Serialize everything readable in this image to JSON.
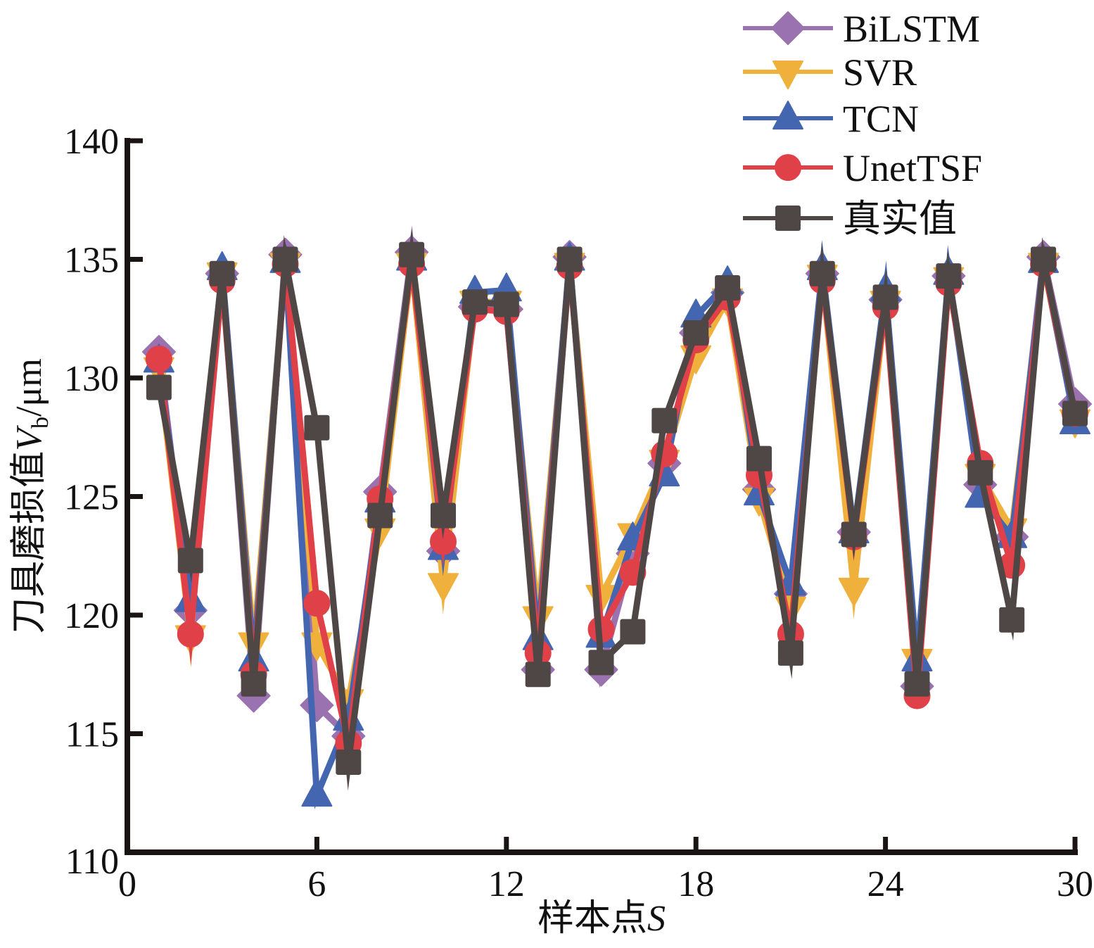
{
  "chart_data": {
    "type": "line",
    "title": "",
    "xlabel": "样本点",
    "xlabel_var": "S",
    "ylabel": "刀具磨损值",
    "ylabel_var": "V",
    "ylabel_sub": "b",
    "ylabel_unit": "/μm",
    "xlim": [
      0,
      30
    ],
    "ylim": [
      110,
      140
    ],
    "xticks": [
      0,
      6,
      12,
      18,
      24,
      30
    ],
    "xtick_labels": [
      "0",
      "6",
      "12",
      "18",
      "24",
      "30"
    ],
    "yticks": [
      110,
      115,
      120,
      125,
      130,
      135,
      140
    ],
    "ytick_labels": [
      "110",
      "115",
      "120",
      "125",
      "130",
      "135",
      "140"
    ],
    "grid": false,
    "legend_position": "top-right",
    "x": [
      1,
      2,
      3,
      4,
      5,
      6,
      7,
      8,
      9,
      10,
      11,
      12,
      13,
      14,
      15,
      16,
      17,
      18,
      19,
      20,
      21,
      22,
      23,
      24,
      25,
      26,
      27,
      28,
      29,
      30
    ],
    "series": [
      {
        "name": "BiLSTM",
        "color": "#9b72b0",
        "marker": "diamond",
        "values": [
          131.1,
          120.2,
          134.4,
          116.6,
          135.2,
          116.2,
          114.9,
          125.2,
          135.3,
          122.7,
          133.0,
          132.9,
          117.7,
          135.1,
          117.7,
          122.6,
          126.4,
          131.9,
          133.6,
          125.3,
          120.9,
          134.4,
          123.5,
          133.3,
          117.0,
          134.3,
          125.5,
          123.3,
          135.1,
          128.9
        ]
      },
      {
        "name": "SVR",
        "color": "#f0b03c",
        "marker": "triangle-down",
        "values": [
          130.4,
          119.1,
          134.4,
          118.8,
          134.8,
          118.8,
          116.4,
          123.6,
          134.8,
          121.3,
          133.2,
          133.2,
          119.9,
          134.8,
          120.8,
          123.4,
          126.5,
          130.9,
          133.3,
          124.9,
          120.3,
          134.3,
          121.1,
          133.2,
          118.1,
          134.2,
          125.9,
          123.6,
          134.8,
          128.2
        ]
      },
      {
        "name": "TCN",
        "color": "#4466b0",
        "marker": "triangle-up",
        "values": [
          130.7,
          120.6,
          134.6,
          118.1,
          134.9,
          112.4,
          115.6,
          124.8,
          135.0,
          122.8,
          133.6,
          133.7,
          119.0,
          135.0,
          119.1,
          123.2,
          125.9,
          132.6,
          134.0,
          125.1,
          121.3,
          134.6,
          123.5,
          133.7,
          118.1,
          134.4,
          125.0,
          123.3,
          134.9,
          128.1
        ]
      },
      {
        "name": "UnetTSF",
        "color": "#e04048",
        "marker": "circle",
        "values": [
          130.8,
          119.2,
          134.1,
          117.5,
          134.8,
          120.5,
          114.6,
          124.9,
          134.8,
          123.1,
          132.9,
          132.8,
          118.4,
          134.7,
          119.4,
          121.8,
          126.8,
          131.6,
          133.4,
          125.9,
          119.2,
          134.1,
          123.3,
          133.0,
          116.6,
          134.0,
          126.4,
          122.1,
          134.8,
          128.5
        ]
      },
      {
        "name": "真实值",
        "color": "#4f4745",
        "marker": "square",
        "values": [
          129.6,
          122.3,
          134.4,
          117.1,
          135.0,
          127.9,
          113.8,
          124.2,
          135.2,
          124.2,
          133.2,
          133.1,
          117.5,
          135.0,
          118.0,
          119.3,
          128.2,
          131.9,
          133.8,
          126.6,
          118.4,
          134.4,
          123.4,
          133.4,
          117.1,
          134.3,
          126.0,
          119.8,
          135.0,
          128.5
        ]
      }
    ]
  }
}
